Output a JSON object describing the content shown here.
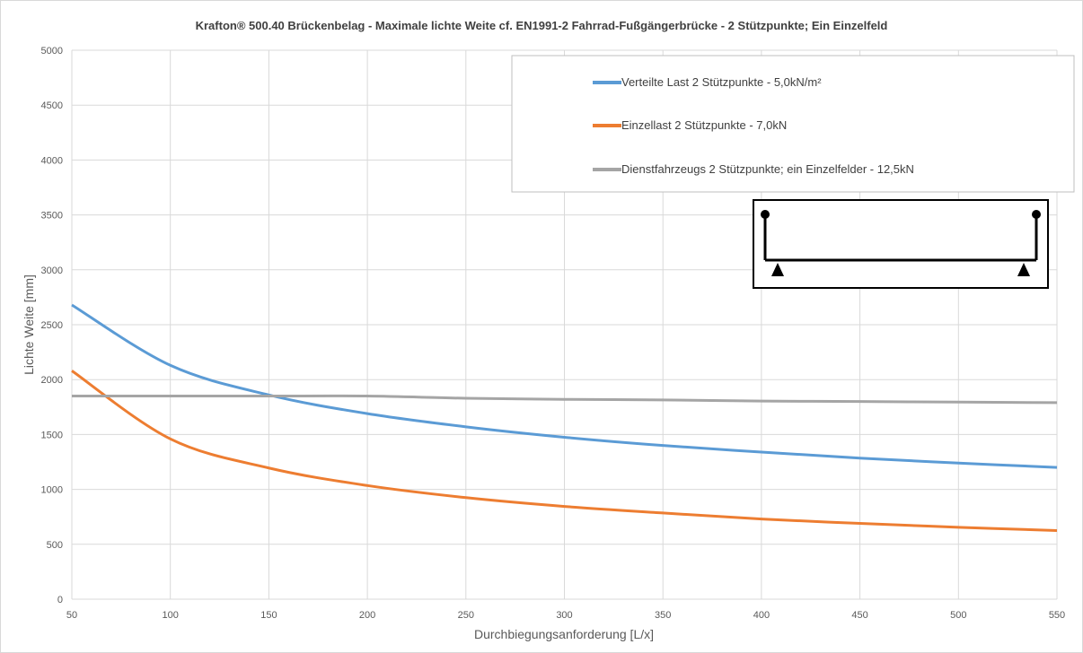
{
  "chart_data": {
    "type": "line",
    "title": "Krafton® 500.40 Brückenbelag  - Maximale lichte Weite cf. EN1991-2 Fahrrad-Fußgängerbrücke - 2 Stützpunkte; Ein Einzelfeld",
    "xlabel": "Durchbiegungsanforderung [L/x]",
    "ylabel": "Lichte Weite [mm]",
    "xlim": [
      50,
      550
    ],
    "ylim": [
      0,
      5000
    ],
    "xticks": [
      50,
      100,
      150,
      200,
      250,
      300,
      350,
      400,
      450,
      500,
      550
    ],
    "yticks": [
      0,
      500,
      1000,
      1500,
      2000,
      2500,
      3000,
      3500,
      4000,
      4500,
      5000
    ],
    "grid": true,
    "legend_position": "top-right",
    "x": [
      50,
      100,
      150,
      200,
      250,
      300,
      350,
      400,
      450,
      500,
      550
    ],
    "series": [
      {
        "name": "Verteilte Last 2 Stützpunkte - 5,0kN/m²",
        "color": "#5B9BD5",
        "values": [
          2680,
          2130,
          1860,
          1690,
          1570,
          1475,
          1400,
          1340,
          1285,
          1240,
          1200
        ]
      },
      {
        "name": "Einzellast 2 Stützpunkte - 7,0kN",
        "color": "#ED7D31",
        "values": [
          2080,
          1460,
          1195,
          1035,
          925,
          845,
          785,
          730,
          690,
          655,
          625
        ]
      },
      {
        "name": "Dienstfahrzeugs 2 Stützpunkte; ein Einzelfelder - 12,5kN",
        "color": "#A5A5A5",
        "values": [
          1850,
          1850,
          1850,
          1850,
          1830,
          1820,
          1815,
          1805,
          1800,
          1795,
          1790
        ]
      }
    ]
  }
}
